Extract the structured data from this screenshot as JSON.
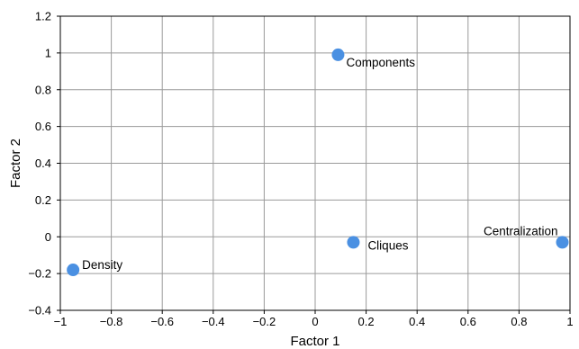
{
  "chart_data": {
    "type": "scatter",
    "xlabel": "Factor 1",
    "ylabel": "Factor 2",
    "xlim": [
      -1,
      1
    ],
    "ylim": [
      -0.4,
      1.2
    ],
    "xticks": [
      -1,
      -0.8,
      -0.6,
      -0.4,
      -0.2,
      0,
      0.2,
      0.4,
      0.6,
      0.8,
      1
    ],
    "xtick_labels": [
      "−1",
      "−0.8",
      "−0.6",
      "−0.4",
      "−0.2",
      "0",
      "0.2",
      "0.4",
      "0.6",
      "0.8",
      "1"
    ],
    "yticks": [
      -0.4,
      -0.2,
      0,
      0.2,
      0.4,
      0.6,
      0.8,
      1,
      1.2
    ],
    "ytick_labels": [
      "−0.4",
      "−0.2",
      "0",
      "0.2",
      "0.4",
      "0.6",
      "0.8",
      "1",
      "1.2"
    ],
    "grid": true,
    "point_color": "#4a90e2",
    "points": [
      {
        "label": "Components",
        "x": 0.09,
        "y": 0.99
      },
      {
        "label": "Cliques",
        "x": 0.15,
        "y": -0.03
      },
      {
        "label": "Centralization",
        "x": 0.97,
        "y": -0.03
      },
      {
        "label": "Density",
        "x": -0.95,
        "y": -0.18
      }
    ]
  }
}
